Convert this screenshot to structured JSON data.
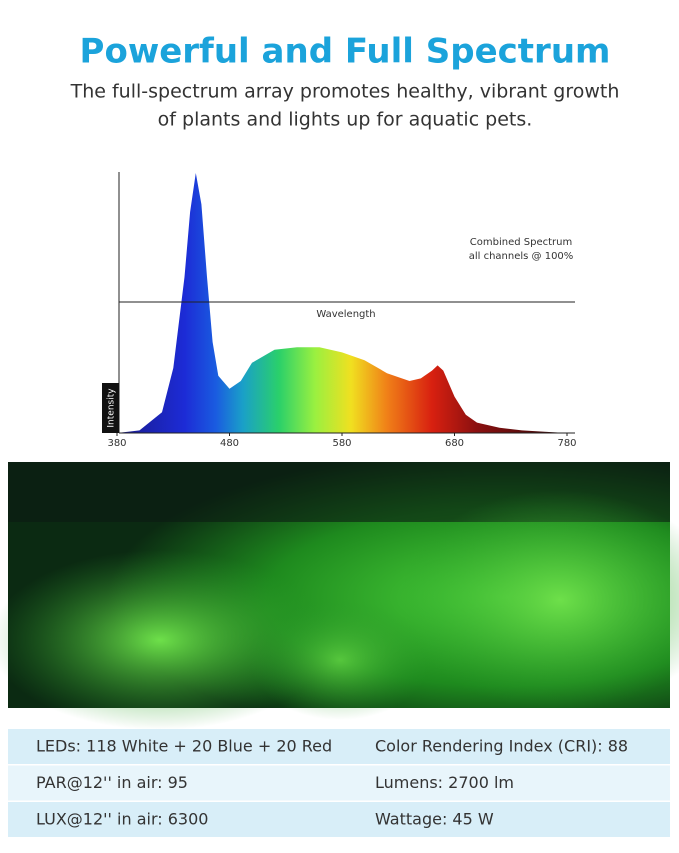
{
  "header": {
    "title": "Powerful and Full Spectrum",
    "subtitle_lines": [
      "The full-spectrum array promotes healthy, vibrant growth",
      "of plants and lights up for aquatic pets."
    ]
  },
  "chart_data": {
    "type": "area",
    "annotation_lines": [
      "Combined Spectrum",
      "all channels @ 100%"
    ],
    "x_label": "Wavelength",
    "y_label": "Intensity",
    "x": [
      380,
      400,
      420,
      430,
      440,
      445,
      450,
      455,
      460,
      465,
      470,
      480,
      490,
      500,
      520,
      540,
      560,
      580,
      600,
      620,
      640,
      650,
      660,
      665,
      670,
      680,
      690,
      700,
      720,
      740,
      760,
      780
    ],
    "values": [
      0,
      1,
      8,
      25,
      60,
      85,
      100,
      88,
      60,
      35,
      22,
      17,
      20,
      27,
      32,
      33,
      33,
      31,
      28,
      23,
      20,
      21,
      24,
      26,
      24,
      14,
      7,
      4,
      2,
      1,
      0.5,
      0
    ],
    "xlim": [
      380,
      780
    ],
    "ylim": [
      0,
      100
    ],
    "xticks": [
      380,
      480,
      580,
      680,
      780
    ]
  },
  "specs": {
    "rows": [
      [
        "LEDs: 118 White + 20 Blue + 20 Red",
        "Color Rendering Index (CRI): 88"
      ],
      [
        "PAR@12'' in air: 95",
        "Lumens: 2700 lm"
      ],
      [
        "LUX@12'' in air: 6300",
        "Wattage: 45 W"
      ]
    ]
  }
}
